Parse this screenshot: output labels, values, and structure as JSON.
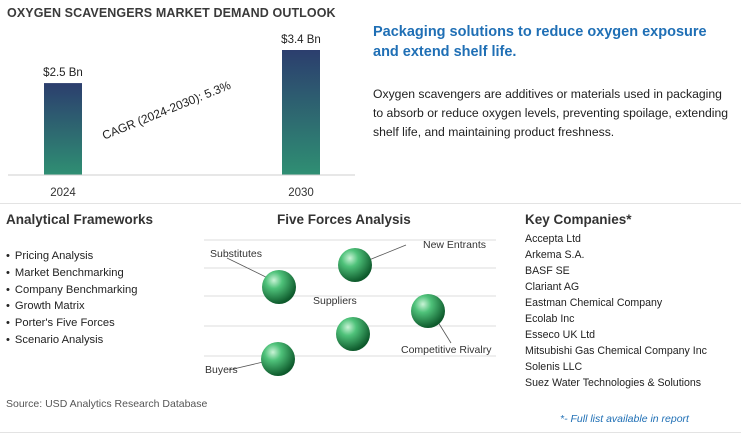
{
  "title": "OXYGEN SCAVENGERS MARKET DEMAND OUTLOOK",
  "headline": "Packaging solutions to reduce oxygen exposure and extend shelf life.",
  "description": "Oxygen scavengers are additives or materials used in packaging to absorb or reduce oxygen levels, preventing spoilage, extending shelf life, and maintaining product freshness.",
  "chart_data": {
    "type": "bar",
    "categories": [
      "2024",
      "2030"
    ],
    "values": [
      2.5,
      3.4
    ],
    "value_labels": [
      "$2.5 Bn",
      "$3.4 Bn"
    ],
    "annotation": "CAGR (2024-2030): 5.3%",
    "title": "",
    "xlabel": "",
    "ylabel": "",
    "ylim": [
      0,
      3.4
    ],
    "grid": false,
    "bar_gradient": [
      "#2c3e6e",
      "#2f8f73"
    ]
  },
  "frameworks": {
    "heading": "Analytical Frameworks",
    "items": [
      "Pricing Analysis",
      "Market Benchmarking",
      "Company Benchmarking",
      "Growth Matrix",
      "Porter's Five Forces",
      "Scenario Analysis"
    ]
  },
  "forces": {
    "heading": "Five Forces Analysis",
    "labels": {
      "substitutes": "Substitutes",
      "new_entrants": "New Entrants",
      "suppliers": "Suppliers",
      "competitive_rivalry": "Competitive Rivalry",
      "buyers": "Buyers"
    },
    "sphere_color": "#2e9d5b"
  },
  "companies": {
    "heading": "Key Companies*",
    "items": [
      "Accepta Ltd",
      "Arkema S.A.",
      "BASF SE",
      "Clariant AG",
      "Eastman Chemical Company",
      "Ecolab Inc",
      "Esseco UK Ltd",
      "Mitsubishi Gas Chemical Company Inc",
      "Solenis LLC",
      "Suez Water Technologies & Solutions"
    ]
  },
  "source": "Source: USD Analytics Research Database",
  "footnote": "*- Full list available in report"
}
